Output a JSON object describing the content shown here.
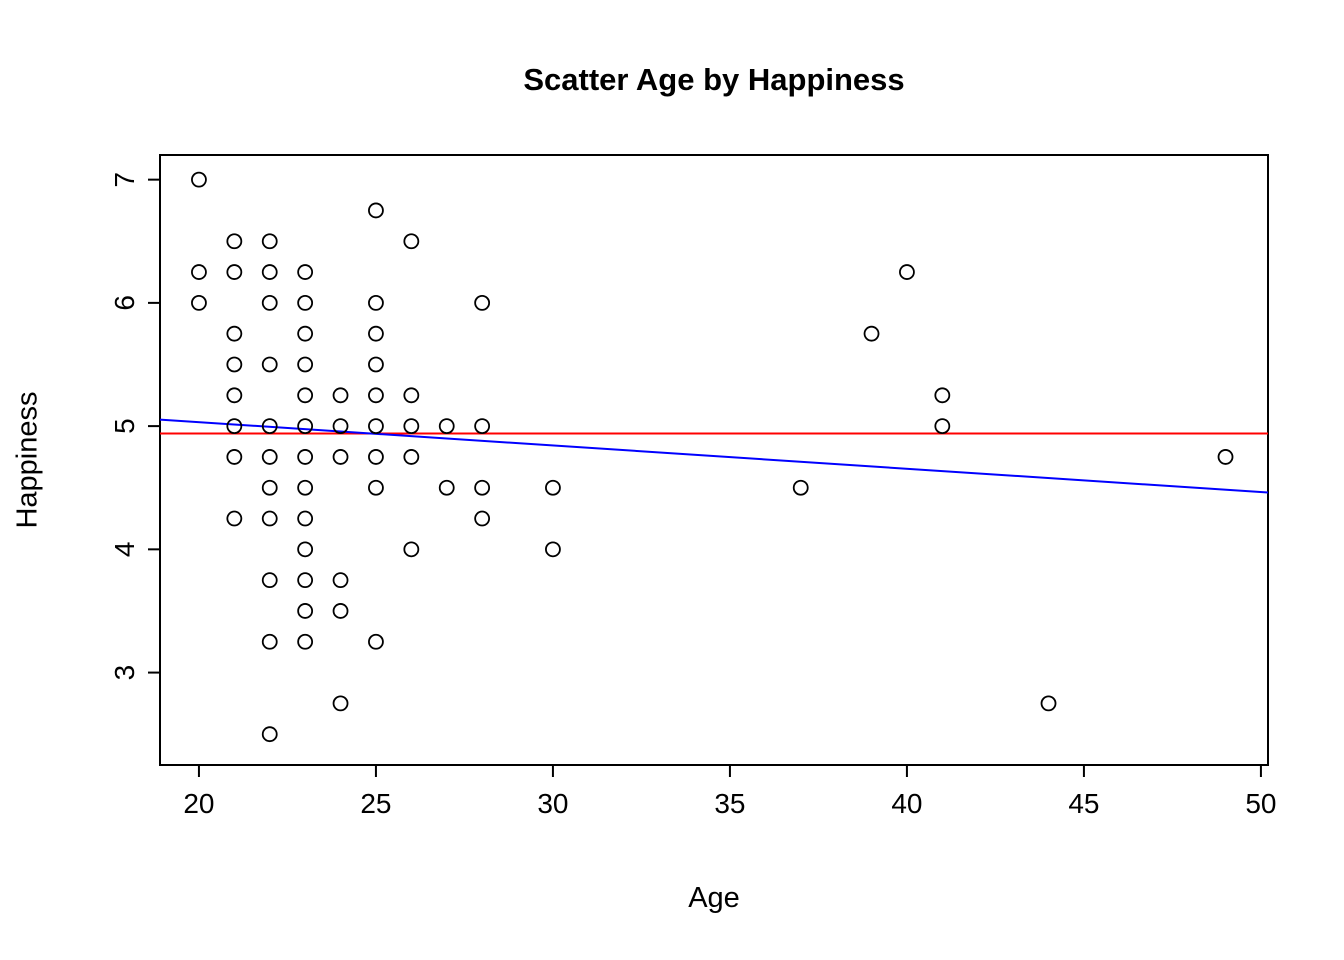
{
  "chart_data": {
    "type": "scatter",
    "title": "Scatter Age by Happiness",
    "xlabel": "Age",
    "ylabel": "Happiness",
    "xlim": [
      18.9,
      50.2
    ],
    "ylim": [
      2.25,
      7.2
    ],
    "x_ticks": [
      "20",
      "25",
      "30",
      "35",
      "40",
      "45",
      "50"
    ],
    "y_ticks": [
      "3",
      "4",
      "5",
      "6",
      "7"
    ],
    "grid": false,
    "legend": "none",
    "point_style": {
      "shape": "circle-open",
      "radius": 7,
      "color": "#000000",
      "stroke_width": 1.8
    },
    "points": [
      [
        20,
        7.0
      ],
      [
        25,
        6.75
      ],
      [
        21,
        6.5
      ],
      [
        22,
        6.5
      ],
      [
        26,
        6.5
      ],
      [
        20,
        6.25
      ],
      [
        21,
        6.25
      ],
      [
        22,
        6.25
      ],
      [
        23,
        6.25
      ],
      [
        40,
        6.25
      ],
      [
        20,
        6.0
      ],
      [
        22,
        6.0
      ],
      [
        23,
        6.0
      ],
      [
        25,
        6.0
      ],
      [
        28,
        6.0
      ],
      [
        21,
        5.75
      ],
      [
        23,
        5.75
      ],
      [
        25,
        5.75
      ],
      [
        39,
        5.75
      ],
      [
        21,
        5.5
      ],
      [
        22,
        5.5
      ],
      [
        23,
        5.5
      ],
      [
        25,
        5.5
      ],
      [
        21,
        5.25
      ],
      [
        23,
        5.25
      ],
      [
        24,
        5.25
      ],
      [
        25,
        5.25
      ],
      [
        26,
        5.25
      ],
      [
        41,
        5.25
      ],
      [
        21,
        5.0
      ],
      [
        22,
        5.0
      ],
      [
        23,
        5.0
      ],
      [
        24,
        5.0
      ],
      [
        25,
        5.0
      ],
      [
        26,
        5.0
      ],
      [
        27,
        5.0
      ],
      [
        28,
        5.0
      ],
      [
        41,
        5.0
      ],
      [
        21,
        4.75
      ],
      [
        22,
        4.75
      ],
      [
        23,
        4.75
      ],
      [
        24,
        4.75
      ],
      [
        25,
        4.75
      ],
      [
        26,
        4.75
      ],
      [
        49,
        4.75
      ],
      [
        22,
        4.5
      ],
      [
        23,
        4.5
      ],
      [
        25,
        4.5
      ],
      [
        27,
        4.5
      ],
      [
        28,
        4.5
      ],
      [
        30,
        4.5
      ],
      [
        37,
        4.5
      ],
      [
        21,
        4.25
      ],
      [
        22,
        4.25
      ],
      [
        23,
        4.25
      ],
      [
        28,
        4.25
      ],
      [
        23,
        4.0
      ],
      [
        26,
        4.0
      ],
      [
        30,
        4.0
      ],
      [
        22,
        3.75
      ],
      [
        23,
        3.75
      ],
      [
        24,
        3.75
      ],
      [
        23,
        3.5
      ],
      [
        24,
        3.5
      ],
      [
        22,
        3.25
      ],
      [
        23,
        3.25
      ],
      [
        25,
        3.25
      ],
      [
        24,
        2.75
      ],
      [
        44,
        2.75
      ],
      [
        22,
        2.5
      ]
    ],
    "lines": [
      {
        "name": "mean-line",
        "type": "horizontal",
        "y": 4.94,
        "color": "#FF0000"
      },
      {
        "name": "regression-line",
        "type": "linear",
        "intercept": 5.41,
        "slope": -0.0189,
        "color": "#0000FF"
      }
    ]
  }
}
